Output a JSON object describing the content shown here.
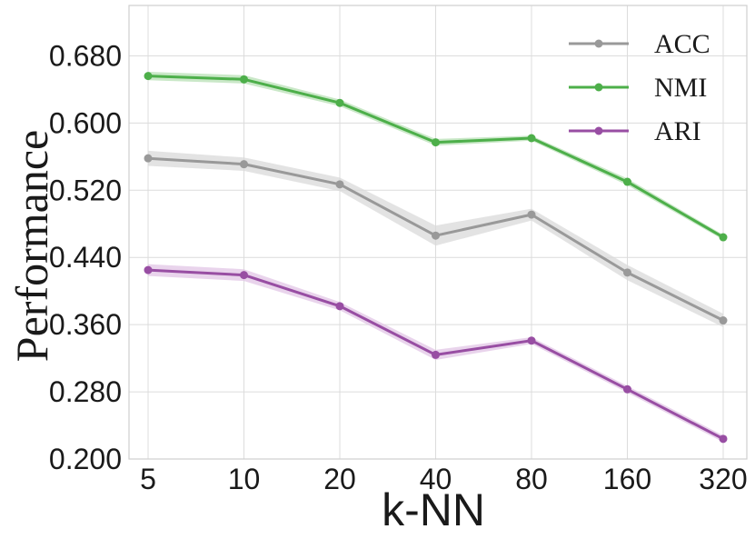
{
  "chart_data": {
    "type": "line",
    "title": "",
    "xlabel": "k-NN",
    "ylabel": "Performance",
    "categories": [
      "5",
      "10",
      "20",
      "40",
      "80",
      "160",
      "320"
    ],
    "ylim": [
      0.2,
      0.74
    ],
    "yticks": [
      "0.200",
      "0.280",
      "0.360",
      "0.440",
      "0.520",
      "0.600",
      "0.680"
    ],
    "grid": true,
    "legend_position": "top-right",
    "series": [
      {
        "name": "ACC",
        "color": "#999999",
        "band": "#d9d9d9",
        "values": [
          0.558,
          0.551,
          0.527,
          0.466,
          0.491,
          0.422,
          0.365
        ],
        "spread": [
          0.009,
          0.008,
          0.008,
          0.012,
          0.007,
          0.009,
          0.008
        ]
      },
      {
        "name": "NMI",
        "color": "#4daf4a",
        "band": "#b8e0b5",
        "values": [
          0.656,
          0.652,
          0.624,
          0.577,
          0.582,
          0.53,
          0.464
        ],
        "spread": [
          0.005,
          0.005,
          0.004,
          0.004,
          0.003,
          0.004,
          0.003
        ]
      },
      {
        "name": "ARI",
        "color": "#984ea3",
        "band": "#e2c6e6",
        "values": [
          0.425,
          0.419,
          0.382,
          0.324,
          0.341,
          0.283,
          0.224
        ],
        "spread": [
          0.007,
          0.007,
          0.005,
          0.006,
          0.004,
          0.004,
          0.004
        ]
      }
    ]
  }
}
